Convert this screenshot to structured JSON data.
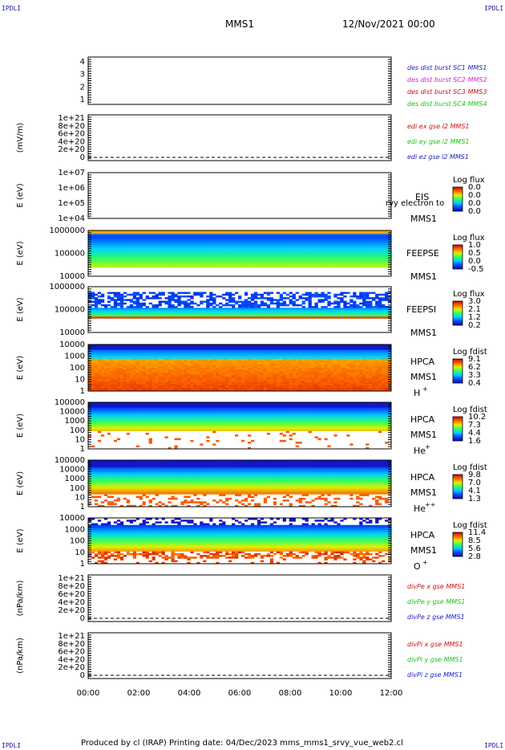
{
  "corner_labels": {
    "top_left": "IPDLI",
    "top_right": "IPDLI",
    "bottom_left": "IPDLI",
    "bottom_right": "IPDLI"
  },
  "header": {
    "title": "MMS1",
    "date": "12/Nov/2021 00:00"
  },
  "footer": {
    "text": "Produced by cl (IRAP)   Printing date: 04/Dec/2023   mms_mms1_srvy_vue_web2.cl"
  },
  "time_axis": {
    "labels": [
      "00:00",
      "02:00",
      "04:00",
      "06:00",
      "08:00",
      "10:00",
      "12:00"
    ]
  },
  "chart_data": [
    {
      "id": "burst",
      "type": "line",
      "ylabel": "",
      "yticks": [
        "4",
        "3",
        "2",
        "1"
      ],
      "legend": [
        {
          "text": "des dist burst SC1 MMS1",
          "color": "#1e1ec8"
        },
        {
          "text": "des dist burst SC2 MMS2",
          "color": "#d21ed2"
        },
        {
          "text": "des dist burst SC3 MMS3",
          "color": "#c81414"
        },
        {
          "text": "des dist burst SC4 MMS4",
          "color": "#14c814"
        }
      ]
    },
    {
      "id": "edi",
      "type": "line",
      "ylabel": "(mV/m)",
      "yticks": [
        "1e+21",
        "8e+20",
        "6e+20",
        "4e+20",
        "2e+20",
        "0"
      ],
      "legend": [
        {
          "text": "edi ex gse l2 MMS1",
          "color": "#c81414"
        },
        {
          "text": "edi ey gse l2 MMS1",
          "color": "#14c814"
        },
        {
          "text": "edi ez gse l2 MMS1",
          "color": "#1e1ec8"
        }
      ]
    },
    {
      "id": "eis",
      "type": "heatmap",
      "ylabel": "E (eV)",
      "yticks": [
        "1e+07",
        "1e+06",
        "1e+05",
        "1e+04"
      ],
      "instrument": "EIS",
      "instrument2": "MMS1",
      "overlay": "rvy electron to",
      "cb_title": "Log flux",
      "cb_values": [
        "0.0",
        "0.0",
        "0.0",
        "0.0"
      ]
    },
    {
      "id": "feepse",
      "type": "heatmap",
      "ylabel": "E (eV)",
      "yticks": [
        "1000000",
        "100000",
        "10000"
      ],
      "instrument": "FEEPSE",
      "instrument2": "MMS1",
      "cb_title": "Log flux",
      "cb_values": [
        "1.0",
        "0.5",
        "0.0",
        "-0.5"
      ]
    },
    {
      "id": "feepsi",
      "type": "heatmap",
      "ylabel": "E (eV)",
      "yticks": [
        "1000000",
        "100000",
        "10000"
      ],
      "instrument": "FEEPSI",
      "instrument2": "MMS1",
      "cb_title": "Log flux",
      "cb_values": [
        "3.0",
        "2.1",
        "1.2",
        "0.2"
      ]
    },
    {
      "id": "hpca_h",
      "type": "heatmap",
      "ylabel": "E (eV)",
      "yticks": [
        "10000",
        "1000",
        "100",
        "10",
        "1"
      ],
      "instrument": "HPCA",
      "instrument2": "MMS1",
      "species": "H",
      "charge": "+",
      "cb_title": "Log fdist",
      "cb_values": [
        "9.1",
        "6.2",
        "3.3",
        "0.4"
      ]
    },
    {
      "id": "hpca_he",
      "type": "heatmap",
      "ylabel": "E (eV)",
      "yticks": [
        "100000",
        "10000",
        "1000",
        "100",
        "10",
        "1"
      ],
      "instrument": "HPCA",
      "instrument2": "MMS1",
      "species": "He",
      "charge": "+",
      "cb_title": "Log fdist",
      "cb_values": [
        "10.2",
        "7.3",
        "4.4",
        "1.6"
      ]
    },
    {
      "id": "hpca_hepp",
      "type": "heatmap",
      "ylabel": "E (eV)",
      "yticks": [
        "100000",
        "10000",
        "1000",
        "100",
        "10",
        "1"
      ],
      "instrument": "HPCA",
      "instrument2": "MMS1",
      "species": "He",
      "charge": "++",
      "cb_title": "Log fdist",
      "cb_values": [
        "9.8",
        "7.0",
        "4.1",
        "1.3"
      ]
    },
    {
      "id": "hpca_o",
      "type": "heatmap",
      "ylabel": "E (eV)",
      "yticks": [
        "10000",
        "1000",
        "100",
        "10",
        "1"
      ],
      "instrument": "HPCA",
      "instrument2": "MMS1",
      "species": "O",
      "charge": "+",
      "cb_title": "Log fdist",
      "cb_values": [
        "11.4",
        "8.5",
        "5.6",
        "2.8"
      ]
    },
    {
      "id": "divpe",
      "type": "line",
      "ylabel": "(nPa/km)",
      "yticks": [
        "1e+21",
        "8e+20",
        "6e+20",
        "4e+20",
        "2e+20",
        "0"
      ],
      "legend": [
        {
          "text": "divPe x gse MMS1",
          "color": "#c81414"
        },
        {
          "text": "divPe y gse MMS1",
          "color": "#14c814"
        },
        {
          "text": "divPe z gse MMS1",
          "color": "#1e1ec8"
        }
      ]
    },
    {
      "id": "divpi",
      "type": "line",
      "ylabel": "(nPa/km)",
      "yticks": [
        "1e+21",
        "8e+20",
        "6e+20",
        "4e+20",
        "2e+20",
        "0"
      ],
      "legend": [
        {
          "text": "divPi x gse MMS1",
          "color": "#c81414"
        },
        {
          "text": "divPi y gse MMS1",
          "color": "#14c814"
        },
        {
          "text": "divPi z gse MMS1",
          "color": "#1e1ec8"
        }
      ]
    }
  ]
}
